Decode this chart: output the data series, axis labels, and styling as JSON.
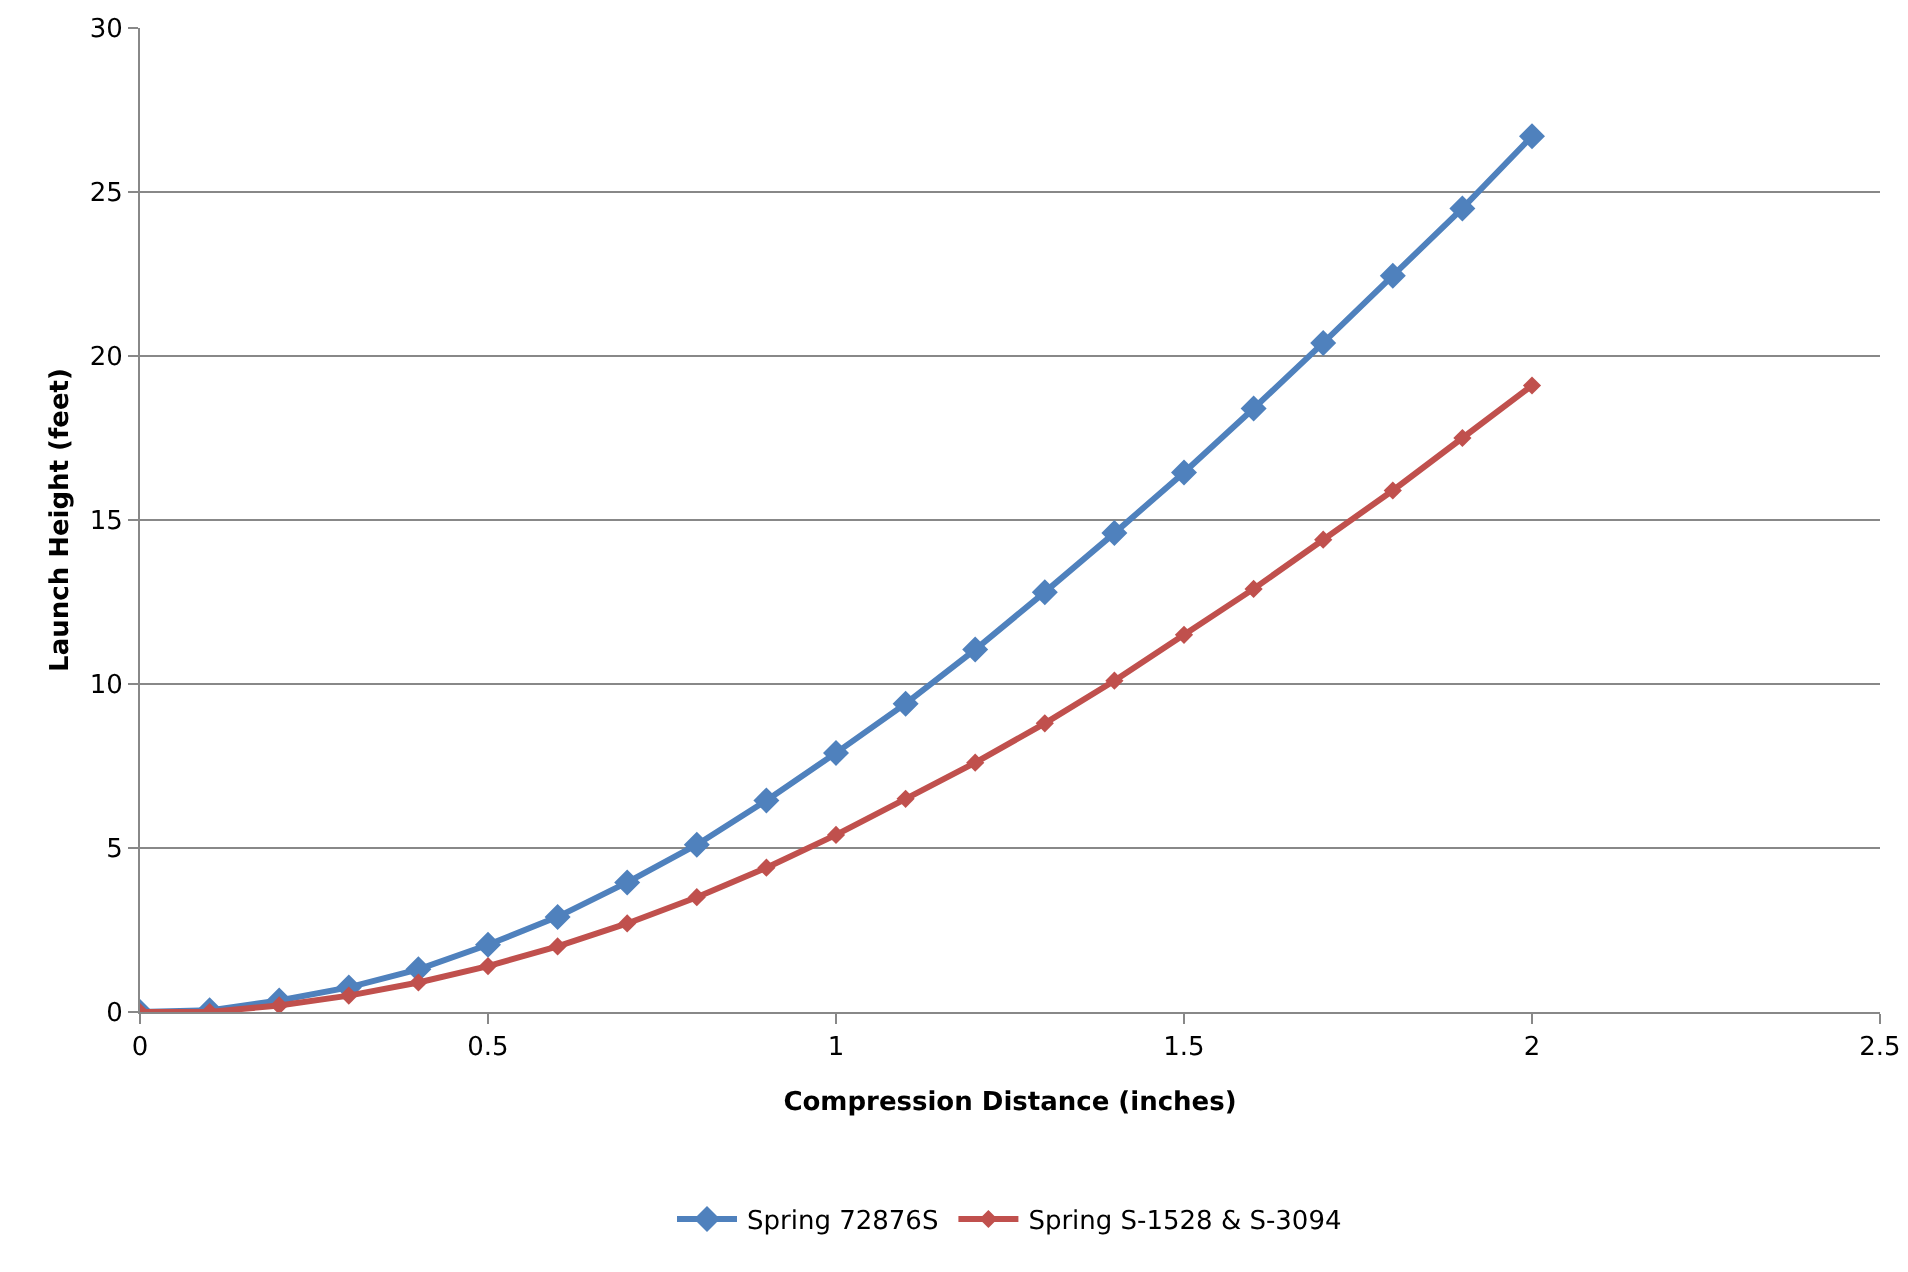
{
  "chart_data": {
    "type": "line",
    "xlabel": "Compression Distance (inches)",
    "ylabel": "Launch Height (feet)",
    "x": [
      0,
      0.1,
      0.2,
      0.3,
      0.4,
      0.5,
      0.6,
      0.7,
      0.8,
      0.9,
      1.0,
      1.1,
      1.2,
      1.3,
      1.4,
      1.5,
      1.6,
      1.7,
      1.8,
      1.9,
      2.0
    ],
    "series": [
      {
        "name": "Spring S-1528 & S-3094",
        "color": "#c0504d",
        "values": [
          0,
          0,
          0.2,
          0.5,
          0.9,
          1.4,
          2.0,
          2.7,
          3.5,
          4.4,
          5.4,
          6.5,
          7.6,
          8.8,
          10.1,
          11.5,
          12.9,
          14.4,
          15.9,
          17.5,
          19.1
        ]
      },
      {
        "name": "Spring 72876S",
        "color": "#4f81bd",
        "values": [
          0,
          0.05,
          0.35,
          0.75,
          1.3,
          2.05,
          2.9,
          3.95,
          5.1,
          6.45,
          7.9,
          9.4,
          11.05,
          12.8,
          14.6,
          16.45,
          18.4,
          20.4,
          22.45,
          24.5,
          26.7
        ]
      }
    ],
    "xlim": [
      0,
      2.5
    ],
    "xticks": [
      0,
      0.5,
      1,
      1.5,
      2,
      2.5
    ],
    "ylim": [
      0,
      30
    ],
    "yticks": [
      0,
      5,
      10,
      15,
      20,
      25,
      30
    ],
    "grid": "y",
    "legend": "bottom",
    "marker": "diamond",
    "line_style": "solid"
  }
}
